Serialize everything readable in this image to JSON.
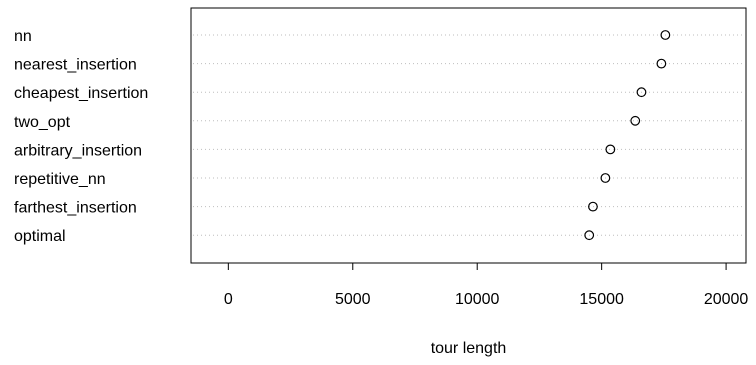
{
  "chart_data": {
    "type": "dotchart",
    "title": "",
    "xlabel": "tour length",
    "ylabel": "",
    "xlim": [
      -1500,
      20800
    ],
    "x_ticks": [
      0,
      5000,
      10000,
      15000,
      20000
    ],
    "x_tick_labels": [
      "0",
      "5000",
      "10000",
      "15000",
      "20000"
    ],
    "grid": "dotted horizontal per category",
    "categories": [
      "nn",
      "nearest_insertion",
      "cheapest_insertion",
      "two_opt",
      "arbitrary_insertion",
      "repetitive_nn",
      "farthest_insertion",
      "optimal"
    ],
    "values": [
      17560,
      17400,
      16600,
      16350,
      15350,
      15150,
      14650,
      14500
    ],
    "marker": "open-circle",
    "colors": {
      "axis": "#000000",
      "grid": "#bebebe",
      "marker": "#000000",
      "background": "#ffffff"
    }
  }
}
